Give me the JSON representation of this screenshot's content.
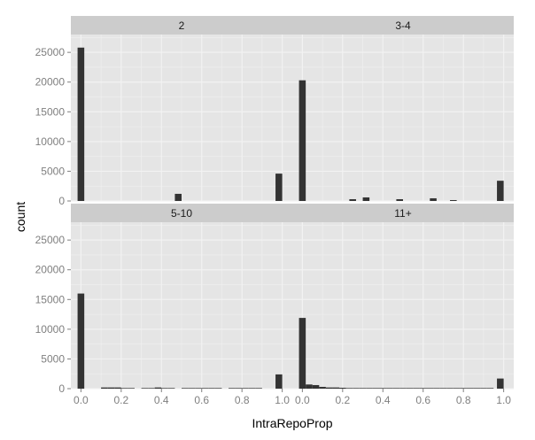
{
  "chart_data": {
    "type": "bar",
    "kind": "faceted-histogram",
    "xlabel": "IntraRepoProp",
    "ylabel": "count",
    "xlim": [
      -0.05,
      1.05
    ],
    "ylim": [
      0,
      28000
    ],
    "x_ticks": [
      "0.0",
      "0.2",
      "0.4",
      "0.6",
      "0.8",
      "1.0"
    ],
    "x_tick_values": [
      0,
      0.2,
      0.4,
      0.6,
      0.8,
      1.0
    ],
    "y_ticks": [
      "0",
      "5000",
      "10000",
      "15000",
      "20000",
      "25000"
    ],
    "y_tick_values": [
      0,
      5000,
      10000,
      15000,
      20000,
      25000
    ],
    "bin_width": 0.0333,
    "grid": true,
    "facets": [
      {
        "label": "2",
        "bins": [
          {
            "x": 0.0,
            "count": 25800
          },
          {
            "x": 0.4833,
            "count": 1200
          },
          {
            "x": 0.9833,
            "count": 4600
          }
        ]
      },
      {
        "label": "3-4",
        "bins": [
          {
            "x": 0.0,
            "count": 20300
          },
          {
            "x": 0.25,
            "count": 300
          },
          {
            "x": 0.3167,
            "count": 600
          },
          {
            "x": 0.4833,
            "count": 300
          },
          {
            "x": 0.65,
            "count": 450
          },
          {
            "x": 0.75,
            "count": 150
          },
          {
            "x": 0.9833,
            "count": 3400
          }
        ]
      },
      {
        "label": "5-10",
        "bins": [
          {
            "x": 0.0,
            "count": 16000
          },
          {
            "x": 0.1167,
            "count": 200
          },
          {
            "x": 0.15,
            "count": 200
          },
          {
            "x": 0.1833,
            "count": 200
          },
          {
            "x": 0.2167,
            "count": 100
          },
          {
            "x": 0.25,
            "count": 100
          },
          {
            "x": 0.3167,
            "count": 100
          },
          {
            "x": 0.35,
            "count": 100
          },
          {
            "x": 0.3833,
            "count": 200
          },
          {
            "x": 0.4167,
            "count": 100
          },
          {
            "x": 0.45,
            "count": 100
          },
          {
            "x": 0.5167,
            "count": 100
          },
          {
            "x": 0.55,
            "count": 100
          },
          {
            "x": 0.5833,
            "count": 100
          },
          {
            "x": 0.6167,
            "count": 100
          },
          {
            "x": 0.65,
            "count": 100
          },
          {
            "x": 0.6833,
            "count": 100
          },
          {
            "x": 0.75,
            "count": 100
          },
          {
            "x": 0.7833,
            "count": 100
          },
          {
            "x": 0.8167,
            "count": 100
          },
          {
            "x": 0.85,
            "count": 100
          },
          {
            "x": 0.8833,
            "count": 100
          },
          {
            "x": 0.9833,
            "count": 2400
          }
        ]
      },
      {
        "label": "11+",
        "bins": [
          {
            "x": 0.0,
            "count": 11900
          },
          {
            "x": 0.0333,
            "count": 700
          },
          {
            "x": 0.0667,
            "count": 600
          },
          {
            "x": 0.1,
            "count": 300
          },
          {
            "x": 0.1333,
            "count": 200
          },
          {
            "x": 0.1667,
            "count": 200
          },
          {
            "x": 0.2,
            "count": 150
          },
          {
            "x": 0.2333,
            "count": 100
          },
          {
            "x": 0.2667,
            "count": 100
          },
          {
            "x": 0.3,
            "count": 100
          },
          {
            "x": 0.3333,
            "count": 100
          },
          {
            "x": 0.3667,
            "count": 100
          },
          {
            "x": 0.4,
            "count": 100
          },
          {
            "x": 0.4333,
            "count": 100
          },
          {
            "x": 0.4667,
            "count": 100
          },
          {
            "x": 0.5,
            "count": 100
          },
          {
            "x": 0.5333,
            "count": 100
          },
          {
            "x": 0.5667,
            "count": 100
          },
          {
            "x": 0.6,
            "count": 100
          },
          {
            "x": 0.6333,
            "count": 100
          },
          {
            "x": 0.6667,
            "count": 100
          },
          {
            "x": 0.7,
            "count": 100
          },
          {
            "x": 0.7333,
            "count": 100
          },
          {
            "x": 0.7667,
            "count": 100
          },
          {
            "x": 0.8,
            "count": 100
          },
          {
            "x": 0.8333,
            "count": 100
          },
          {
            "x": 0.8667,
            "count": 100
          },
          {
            "x": 0.9,
            "count": 100
          },
          {
            "x": 0.9333,
            "count": 100
          },
          {
            "x": 0.9833,
            "count": 1700
          }
        ]
      }
    ]
  },
  "colors": {
    "panel_background": "#e5e5e5",
    "strip_background": "#cccccc",
    "grid_major": "#f2f2f2",
    "bar_fill": "#333333",
    "tick_text": "#7f7f7f"
  }
}
